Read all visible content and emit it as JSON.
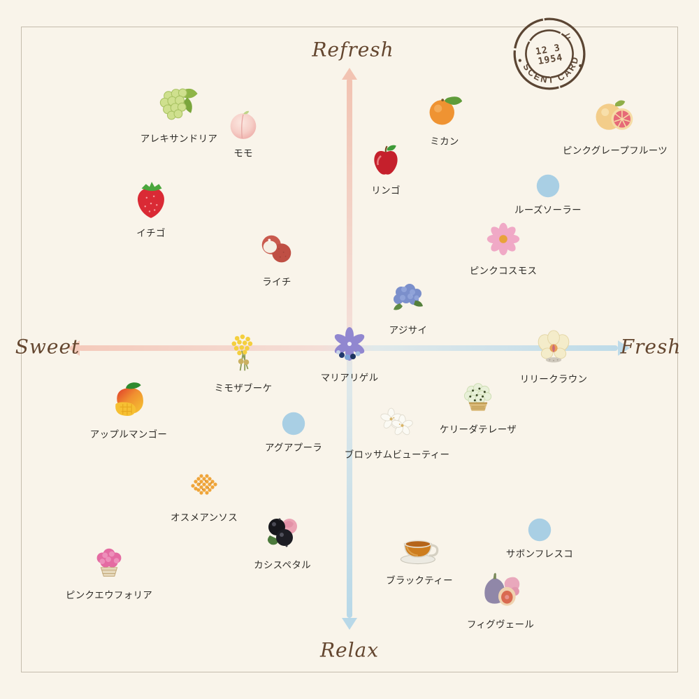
{
  "colors": {
    "background": "#f9f4ea",
    "frame_border": "#c4bcad",
    "axis_pink": "#f2c3b2",
    "axis_blue": "#bedbe9",
    "axis_label_brown": "#64462f",
    "stamp_brown": "#5b4533",
    "dot_marker_blue": "#a9cfe4",
    "label_text": "#2e2c28"
  },
  "axes": {
    "top_label": "Refresh",
    "bottom_label": "Relax",
    "left_label": "Sweet",
    "right_label": "Fresh"
  },
  "stamp": {
    "ring_text": "SCENT CARD",
    "date_line1": "12 3",
    "date_line2": "1954"
  },
  "chart_data": {
    "type": "scatter",
    "title": "SCENT CARD",
    "x_axis": {
      "label_negative": "Sweet",
      "label_positive": "Fresh",
      "range": [
        -1,
        1
      ]
    },
    "y_axis": {
      "label_negative": "Relax",
      "label_positive": "Refresh",
      "range": [
        -1,
        1
      ]
    },
    "grid": false,
    "legend": false,
    "points": [
      {
        "label": "アレキサンドリア",
        "icon": "muscat-grapes-icon",
        "marker": "illustration",
        "x": -0.61,
        "y": 0.87
      },
      {
        "label": "モモ",
        "icon": "peach-icon",
        "marker": "illustration",
        "x": -0.38,
        "y": 0.8
      },
      {
        "label": "ミカン",
        "icon": "mandarin-icon",
        "marker": "illustration",
        "x": 0.34,
        "y": 0.85
      },
      {
        "label": "ピンクグレープフルーツ",
        "icon": "pink-grapefruit-icon",
        "marker": "illustration",
        "x": 0.95,
        "y": 0.83
      },
      {
        "label": "リンゴ",
        "icon": "apple-icon",
        "marker": "illustration",
        "x": 0.13,
        "y": 0.67
      },
      {
        "label": "イチゴ",
        "icon": "strawberry-icon",
        "marker": "illustration",
        "x": -0.71,
        "y": 0.53
      },
      {
        "label": "ルーズソーラー",
        "icon": "dot-icon",
        "marker": "dot",
        "x": 0.71,
        "y": 0.58
      },
      {
        "label": "ピンクコスモス",
        "icon": "cosmos-icon",
        "marker": "illustration",
        "x": 0.55,
        "y": 0.39
      },
      {
        "label": "ライチ",
        "icon": "lychee-icon",
        "marker": "illustration",
        "x": -0.26,
        "y": 0.35
      },
      {
        "label": "アジサイ",
        "icon": "hydrangea-icon",
        "marker": "illustration",
        "x": 0.21,
        "y": 0.18
      },
      {
        "label": "ミモザブーケ",
        "icon": "mimosa-icon",
        "marker": "illustration",
        "x": -0.38,
        "y": -0.02
      },
      {
        "label": "マリアリゲル",
        "icon": "bellflower-icon",
        "marker": "illustration",
        "x": 0.0,
        "y": 0.01
      },
      {
        "label": "リリークラウン",
        "icon": "orchid-icon",
        "marker": "illustration",
        "x": 0.73,
        "y": 0.0
      },
      {
        "label": "アップルマンゴー",
        "icon": "mango-icon",
        "marker": "illustration",
        "x": -0.79,
        "y": -0.19
      },
      {
        "label": "アグアプーラ",
        "icon": "dot-icon",
        "marker": "dot",
        "x": -0.2,
        "y": -0.27
      },
      {
        "label": "ブロッサムビューティー",
        "icon": "blossom-icon",
        "marker": "illustration",
        "x": 0.17,
        "y": -0.27
      },
      {
        "label": "ケリーダテレーザ",
        "icon": "flower-basket-green-icon",
        "marker": "illustration",
        "x": 0.46,
        "y": -0.18
      },
      {
        "label": "オスメアンソス",
        "icon": "osmanthus-icon",
        "marker": "illustration",
        "x": -0.52,
        "y": -0.49
      },
      {
        "label": "カシスペタル",
        "icon": "cassis-icon",
        "marker": "illustration",
        "x": -0.24,
        "y": -0.66
      },
      {
        "label": "ピンクエウフォリア",
        "icon": "pink-flower-basket-icon",
        "marker": "illustration",
        "x": -0.86,
        "y": -0.77
      },
      {
        "label": "ブラックティー",
        "icon": "black-tea-icon",
        "marker": "illustration",
        "x": 0.25,
        "y": -0.71
      },
      {
        "label": "サボンフレスコ",
        "icon": "dot-icon",
        "marker": "dot",
        "x": 0.68,
        "y": -0.65
      },
      {
        "label": "フィグヴェール",
        "icon": "fig-icon",
        "marker": "illustration",
        "x": 0.54,
        "y": -0.87
      }
    ]
  }
}
